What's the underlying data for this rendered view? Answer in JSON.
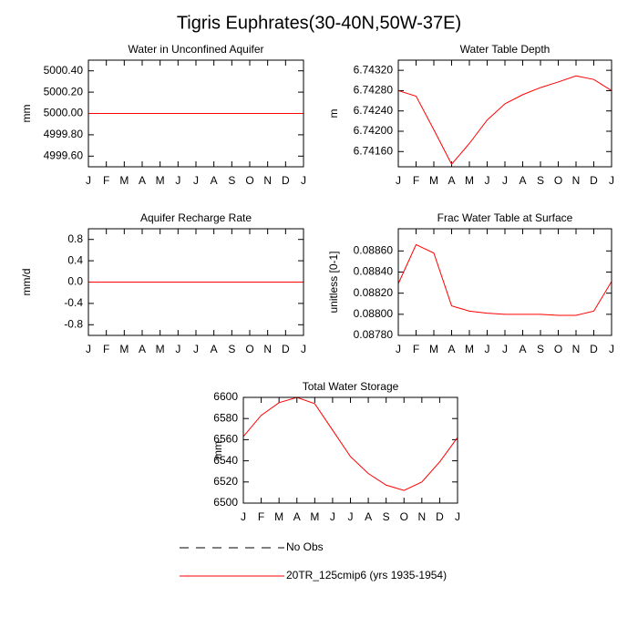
{
  "title": "Tigris Euphrates(30-40N,50W-37E)",
  "chart_data": [
    {
      "type": "line",
      "title": "Water in Unconfined Aquifer",
      "y_label": "mm",
      "categories": [
        "J",
        "F",
        "M",
        "A",
        "M",
        "J",
        "J",
        "A",
        "S",
        "O",
        "N",
        "D",
        "J"
      ],
      "series": [
        {
          "color": "#ff0000",
          "values": [
            5000,
            5000,
            5000,
            5000,
            5000,
            5000,
            5000,
            5000,
            5000,
            5000,
            5000,
            5000,
            5000
          ]
        }
      ],
      "ylim": [
        4999.5,
        5000.5
      ],
      "yticks": [
        {
          "value": 4999.6,
          "label": "4999.60"
        },
        {
          "value": 4999.8,
          "label": "4999.80"
        },
        {
          "value": 5000,
          "label": "5000.00"
        },
        {
          "value": 5000.2,
          "label": "5000.20"
        },
        {
          "value": 5000.4,
          "label": "5000.40"
        }
      ]
    },
    {
      "type": "line",
      "title": "Water Table Depth",
      "y_label": "m",
      "categories": [
        "J",
        "F",
        "M",
        "A",
        "M",
        "J",
        "J",
        "A",
        "S",
        "O",
        "N",
        "D",
        "J"
      ],
      "series": [
        {
          "color": "#ff0000",
          "values": [
            6.7428,
            6.74269,
            6.74203,
            6.74135,
            6.74176,
            6.74222,
            6.74254,
            6.74272,
            6.74286,
            6.74297,
            6.74309,
            6.74302,
            6.7428
          ]
        }
      ],
      "ylim": [
        6.7413,
        6.7434
      ],
      "yticks": [
        {
          "value": 6.7416,
          "label": "6.74160"
        },
        {
          "value": 6.742,
          "label": "6.74200"
        },
        {
          "value": 6.7424,
          "label": "6.74240"
        },
        {
          "value": 6.7428,
          "label": "6.74280"
        },
        {
          "value": 6.7432,
          "label": "6.74320"
        }
      ]
    },
    {
      "type": "line",
      "title": "Aquifer Recharge Rate",
      "y_label": "mm/d",
      "categories": [
        "J",
        "F",
        "M",
        "A",
        "M",
        "J",
        "J",
        "A",
        "S",
        "O",
        "N",
        "D",
        "J"
      ],
      "series": [
        {
          "color": "#ff0000",
          "values": [
            0,
            0,
            0,
            0,
            0,
            0,
            0,
            0,
            0,
            0,
            0,
            0,
            0
          ]
        }
      ],
      "ylim": [
        -1,
        1
      ],
      "yticks": [
        -0.8,
        -0.4,
        {
          "value": 0,
          "label": "0.0"
        },
        0.4,
        0.8
      ]
    },
    {
      "type": "line",
      "title": "Frac Water Table at Surface",
      "y_label": "unitless [0-1]",
      "categories": [
        "J",
        "F",
        "M",
        "A",
        "M",
        "J",
        "J",
        "A",
        "S",
        "O",
        "N",
        "D",
        "J"
      ],
      "series": [
        {
          "color": "#ff0000",
          "values": [
            0.08829,
            0.08866,
            0.08858,
            0.08808,
            0.08803,
            0.08801,
            0.088,
            0.088,
            0.088,
            0.08799,
            0.08799,
            0.08803,
            0.08831
          ]
        }
      ],
      "ylim": [
        0.0878,
        0.08881
      ],
      "yticks": [
        {
          "value": 0.0878,
          "label": "0.08780"
        },
        {
          "value": 0.088,
          "label": "0.08800"
        },
        {
          "value": 0.0882,
          "label": "0.08820"
        },
        {
          "value": 0.0884,
          "label": "0.08840"
        },
        {
          "value": 0.0886,
          "label": "0.08860"
        }
      ]
    },
    {
      "type": "line",
      "title": "Total Water Storage",
      "y_label": "mm",
      "categories": [
        "J",
        "F",
        "M",
        "A",
        "M",
        "J",
        "J",
        "A",
        "S",
        "O",
        "N",
        "D",
        "J"
      ],
      "series": [
        {
          "color": "#ff0000",
          "values": [
            6563,
            6583,
            6595,
            6600,
            6594,
            6569,
            6544,
            6528,
            6517,
            6512,
            6520,
            6539,
            6562
          ]
        }
      ],
      "ylim": [
        6500,
        6600
      ],
      "yticks": [
        6500,
        6520,
        6540,
        6560,
        6580,
        6600
      ]
    }
  ],
  "legend": [
    {
      "name": "No Obs",
      "color": "#000000",
      "dash": "dashed"
    },
    {
      "name": "20TR_125cmip6 (yrs 1935-1954)",
      "color": "#ff0000",
      "dash": "solid"
    }
  ]
}
